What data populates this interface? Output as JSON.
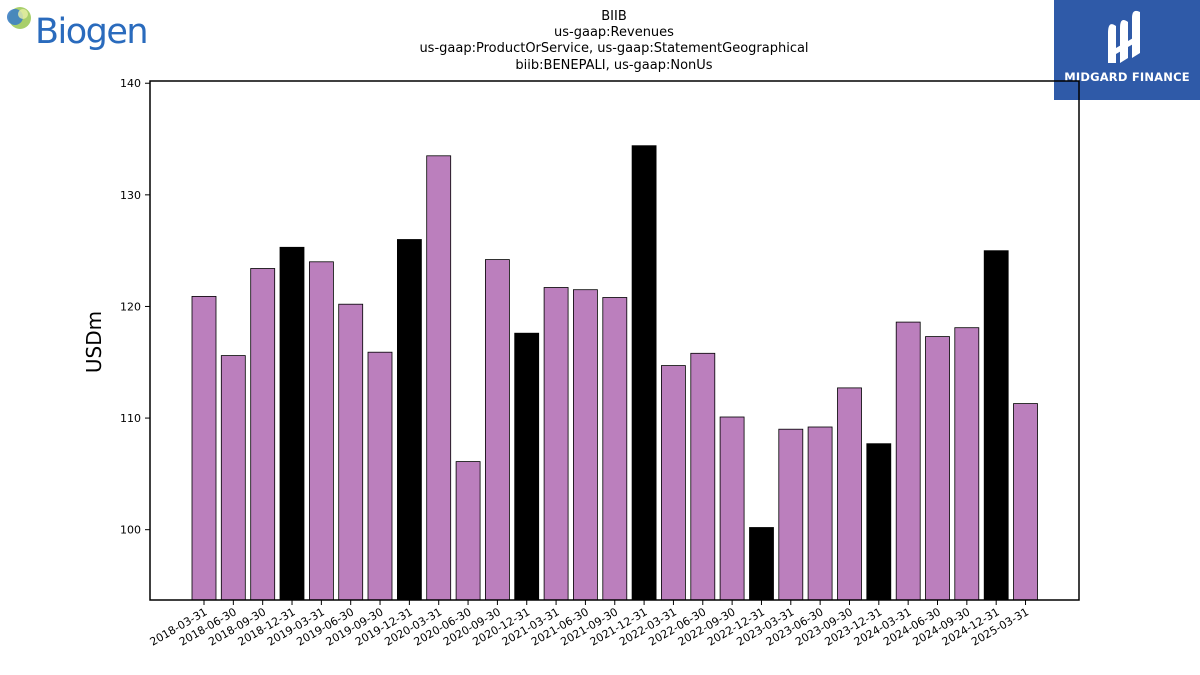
{
  "logos": {
    "left_text": "Biogen",
    "right_text": "MIDGARD FINANCE"
  },
  "colors": {
    "normal_bar": "#bb7fbd",
    "highlight_bar": "#000000"
  },
  "chart_data": {
    "type": "bar",
    "title": "BIIB\nus-gaap:Revenues\nus-gaap:ProductOrService, us-gaap:StatementGeographical\nbiib:BENEPALI, us-gaap:NonUs",
    "title_lines": [
      "BIIB",
      "us-gaap:Revenues",
      "us-gaap:ProductOrService, us-gaap:StatementGeographical",
      "biib:BENEPALI, us-gaap:NonUs"
    ],
    "xlabel": "",
    "ylabel": "USDm",
    "ylim": [
      93.7,
      140.2
    ],
    "yticks": [
      100,
      110,
      120,
      130,
      140
    ],
    "grid": false,
    "categories": [
      "2018-03-31",
      "2018-06-30",
      "2018-09-30",
      "2018-12-31",
      "2019-03-31",
      "2019-06-30",
      "2019-09-30",
      "2019-12-31",
      "2020-03-31",
      "2020-06-30",
      "2020-09-30",
      "2020-12-31",
      "2021-03-31",
      "2021-06-30",
      "2021-09-30",
      "2021-12-31",
      "2022-03-31",
      "2022-06-30",
      "2022-09-30",
      "2022-12-31",
      "2023-03-31",
      "2023-06-30",
      "2023-09-30",
      "2023-12-31",
      "2024-03-31",
      "2024-06-30",
      "2024-09-30",
      "2024-12-31",
      "2025-03-31"
    ],
    "values": [
      120.9,
      115.6,
      123.4,
      125.3,
      124.0,
      120.2,
      115.9,
      126.0,
      133.5,
      106.1,
      124.2,
      117.6,
      121.7,
      121.5,
      120.8,
      134.4,
      114.7,
      115.8,
      110.1,
      100.2,
      109.0,
      109.2,
      112.7,
      107.7,
      118.6,
      117.3,
      118.1,
      125.0,
      111.3
    ],
    "highlight": [
      false,
      false,
      false,
      true,
      false,
      false,
      false,
      true,
      false,
      false,
      false,
      true,
      false,
      false,
      false,
      true,
      false,
      false,
      false,
      true,
      false,
      false,
      false,
      true,
      false,
      false,
      false,
      true,
      false
    ]
  }
}
